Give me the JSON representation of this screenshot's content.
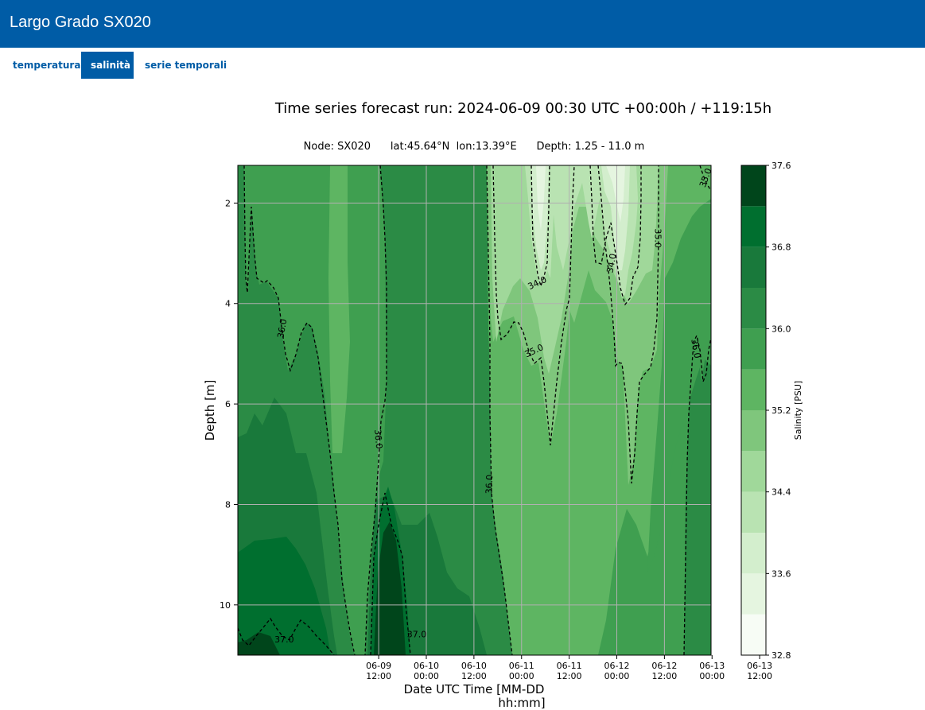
{
  "header": {
    "title": "Largo Grado SX020"
  },
  "tabs": [
    {
      "label": "temperatura",
      "active": false
    },
    {
      "label": "salinità",
      "active": true
    },
    {
      "label": "serie temporali",
      "active": false
    }
  ],
  "colors": {
    "header_bg": "#005ca6",
    "contour_line": "#000000",
    "colormap": [
      "#f7fcf5",
      "#e5f5e0",
      "#d3eecd",
      "#b9e3b2",
      "#a0d89a",
      "#7fc67c",
      "#5eb562",
      "#3f9f50",
      "#2b8b45",
      "#19793b",
      "#006f2f",
      "#00451b"
    ]
  },
  "chart_data": {
    "type": "heatmap",
    "title": "Time series forecast run: 2024-06-09  00:30 UTC   +00:00h / +119:15h",
    "subtitle": "Node: SX020      lat:45.64°N  lon:13.39°E      Depth: 1.25 - 11.0 m",
    "xlabel_line1": "Date UTC Time [MM-DD",
    "xlabel_line2": "hh:mm]",
    "ylabel": "Depth [m]",
    "colorbar_label": "Salinity [PSU]",
    "x_start_hours": 0.5,
    "x_end_hours": 119.75,
    "ylim": [
      11.0,
      1.25
    ],
    "x_ticks": [
      {
        "hours": 36,
        "line1": "06-09",
        "line2": "12:00"
      },
      {
        "hours": 48,
        "line1": "06-10",
        "line2": "00:00"
      },
      {
        "hours": 60,
        "line1": "06-10",
        "line2": "12:00"
      },
      {
        "hours": 72,
        "line1": "06-11",
        "line2": "00:00"
      },
      {
        "hours": 84,
        "line1": "06-11",
        "line2": "12:00"
      },
      {
        "hours": 96,
        "line1": "06-12",
        "line2": "00:00"
      },
      {
        "hours": 108,
        "line1": "06-12",
        "line2": "12:00"
      },
      {
        "hours": 120,
        "line1": "06-13",
        "line2": "00:00"
      },
      {
        "hours": 132,
        "line1": "06-13",
        "line2": "12:00"
      }
    ],
    "y_ticks": [
      2,
      4,
      6,
      8,
      10
    ],
    "colorbar_levels": [
      32.8,
      33.2,
      33.6,
      34.0,
      34.4,
      34.8,
      35.2,
      35.6,
      36.0,
      36.4,
      36.8,
      37.2,
      37.6
    ],
    "colorbar_ticks": [
      "32.8",
      "33.6",
      "34.4",
      "35.2",
      "36.0",
      "36.8",
      "37.6"
    ],
    "contour_labels": [
      {
        "text": "35.0",
        "hours": 118.5,
        "depth": 1.5,
        "angle": -70
      },
      {
        "text": "35.0",
        "hours": 106.2,
        "depth": 2.7,
        "angle": 90
      },
      {
        "text": "34.0",
        "hours": 94.8,
        "depth": 3.2,
        "angle": -80
      },
      {
        "text": "34.0",
        "hours": 76.0,
        "depth": 3.6,
        "angle": -25
      },
      {
        "text": "35.0",
        "hours": 75.2,
        "depth": 4.95,
        "angle": -25
      },
      {
        "text": "36.0",
        "hours": 11.8,
        "depth": 4.5,
        "angle": -80
      },
      {
        "text": "36.0",
        "hours": 115.8,
        "depth": 4.9,
        "angle": 80
      },
      {
        "text": "36.0",
        "hours": 35.8,
        "depth": 6.7,
        "angle": 85
      },
      {
        "text": "36.0",
        "hours": 64.0,
        "depth": 7.6,
        "angle": -88
      },
      {
        "text": "37.0",
        "hours": 12.2,
        "depth": 10.7,
        "angle": 0
      },
      {
        "text": "37.0",
        "hours": 45.6,
        "depth": 10.6,
        "angle": 0
      }
    ]
  }
}
